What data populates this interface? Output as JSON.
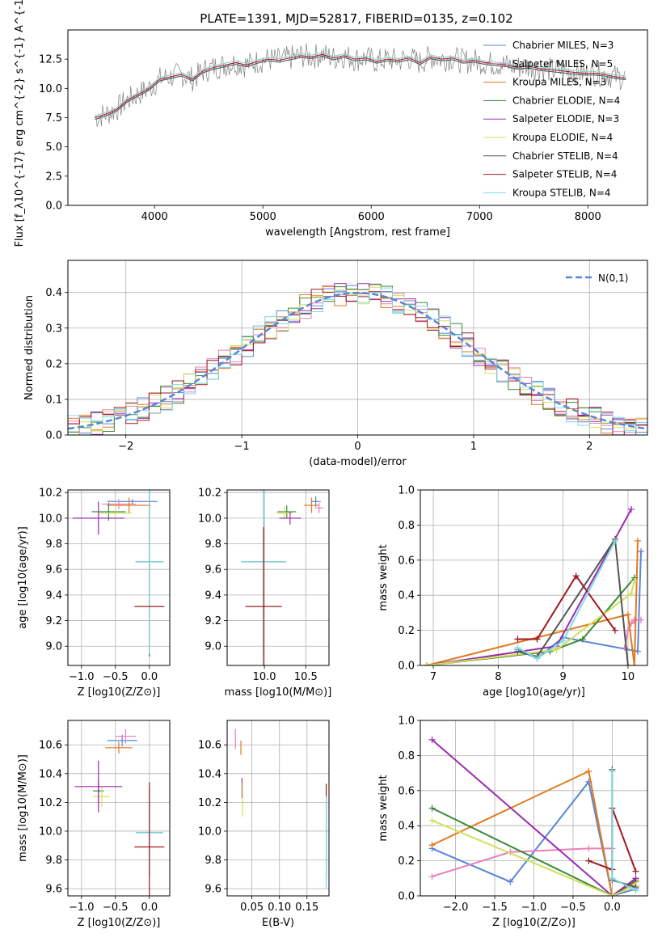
{
  "chart_data": [
    {
      "id": "spectrum",
      "type": "line",
      "title": "PLATE=1391, MJD=52817, FIBERID=0135, z=0.102",
      "xlabel": "wavelength [Angstrom, rest frame]",
      "ylabel": "Flux [f_λ10^{-17} erg cm^{-2} s^{-1} A^{-1}]",
      "xlim": [
        3200,
        8550
      ],
      "ylim": [
        0,
        15
      ],
      "xticks": [
        4000,
        5000,
        6000,
        7000,
        8000
      ],
      "yticks": [
        0.0,
        2.5,
        5.0,
        7.5,
        10.0,
        12.5
      ],
      "grid": false,
      "legend_position": "right",
      "data_series": {
        "name": "data",
        "color": "#808080",
        "x": [
          3450,
          3550,
          3650,
          3750,
          3850,
          3950,
          4050,
          4150,
          4250,
          4350,
          4450,
          4550,
          4650,
          4750,
          4850,
          4950,
          5050,
          5150,
          5250,
          5350,
          5450,
          5550,
          5650,
          5750,
          5850,
          5950,
          6050,
          6150,
          6250,
          6350,
          6450,
          6550,
          6650,
          6750,
          6850,
          6950,
          7050,
          7150,
          7250,
          7350,
          7450,
          7550,
          7650,
          7750,
          7850,
          7950,
          8050,
          8150,
          8250,
          8350
        ],
        "y": [
          7.5,
          7.8,
          8.2,
          9.0,
          9.5,
          10.0,
          10.8,
          11.0,
          11.2,
          10.8,
          11.5,
          11.8,
          12.0,
          12.2,
          12.0,
          12.3,
          12.5,
          12.4,
          12.6,
          12.8,
          12.7,
          12.9,
          12.6,
          12.8,
          12.5,
          12.6,
          12.3,
          12.5,
          12.4,
          12.6,
          12.2,
          12.7,
          12.5,
          12.6,
          12.3,
          12.4,
          12.2,
          12.1,
          12.0,
          11.8,
          11.9,
          11.7,
          11.6,
          11.5,
          11.4,
          11.3,
          11.3,
          11.2,
          11.0,
          10.9
        ]
      },
      "series": [
        {
          "name": "Chabrier MILES, N_SSP=3",
          "color": "#5a85d6"
        },
        {
          "name": "Salpeter MILES, N_SSP=5",
          "color": "#e87fbd"
        },
        {
          "name": "Kroupa MILES, N_SSP=3",
          "color": "#e07a1f"
        },
        {
          "name": "Chabrier ELODIE, N_SSP=4",
          "color": "#3a8a3a"
        },
        {
          "name": "Salpeter ELODIE, N_SSP=3",
          "color": "#9a2cb0"
        },
        {
          "name": "Kroupa ELODIE, N_SSP=4",
          "color": "#d2e05a"
        },
        {
          "name": "Chabrier STELIB, N_SSP=4",
          "color": "#555555"
        },
        {
          "name": "Salpeter STELIB, N_SSP=4",
          "color": "#a01820"
        },
        {
          "name": "Kroupa STELIB, N_SSP=4",
          "color": "#7fd8e0"
        }
      ]
    },
    {
      "id": "residuals",
      "type": "bar",
      "xlabel": "(data-model)/error",
      "ylabel": "Normed distribution",
      "xlim": [
        -2.5,
        2.5
      ],
      "ylim": [
        0,
        0.49
      ],
      "xticks": [
        -2,
        -1,
        0,
        1,
        2
      ],
      "yticks": [
        0.0,
        0.1,
        0.2,
        0.3,
        0.4
      ],
      "grid": true,
      "legend": "N(0,1)",
      "legend_position": "top-right",
      "gaussian_color": "#5a85d6"
    },
    {
      "id": "age_vs_Z",
      "type": "scatter",
      "xlabel": "Z [log10(Z/Z⊙)]",
      "ylabel": "age  [log10(age/yr)]",
      "xlim": [
        -1.2,
        0.3
      ],
      "ylim": [
        8.85,
        10.22
      ],
      "xticks": [
        -1.0,
        -0.5,
        0.0
      ],
      "yticks": [
        9.0,
        9.2,
        9.4,
        9.6,
        9.8,
        10.0,
        10.2
      ],
      "grid": true,
      "errorbars": [
        {
          "color": "#5a85d6",
          "x": -0.25,
          "y": 10.13,
          "xerr": 0.37,
          "yerr": 0.02
        },
        {
          "color": "#e87fbd",
          "x": -0.45,
          "y": 10.11,
          "xerr": 0.25,
          "yerr": 0.04
        },
        {
          "color": "#e07a1f",
          "x": -0.3,
          "y": 10.1,
          "xerr": 0.32,
          "yerr": 0.06
        },
        {
          "color": "#3a8a3a",
          "x": -0.6,
          "y": 10.05,
          "xerr": 0.25,
          "yerr": 0.07
        },
        {
          "color": "#d2e05a",
          "x": -0.5,
          "y": 10.04,
          "xerr": 0.25,
          "yerr": 0.06
        },
        {
          "color": "#9a2cb0",
          "x": -0.75,
          "y": 10.0,
          "xerr": 0.38,
          "yerr": 0.13
        },
        {
          "color": "#555555",
          "x": 0.0,
          "y": 9.66,
          "xerr": 0.2,
          "yerr": 0.74
        },
        {
          "color": "#7fd8e0",
          "x": 0.0,
          "y": 9.66,
          "xerr": 0.21,
          "yerr": 0.72
        },
        {
          "color": "#a01820",
          "x": 0.0,
          "y": 9.31,
          "xerr": 0.22,
          "yerr": 0.0
        }
      ]
    },
    {
      "id": "age_vs_mass",
      "type": "scatter",
      "xlabel": "mass [log10(M/M⊙)]",
      "ylabel": "",
      "xlim": [
        9.55,
        10.78
      ],
      "ylim": [
        8.85,
        10.22
      ],
      "xticks": [
        10.0,
        10.5
      ],
      "yticks": [
        9.0,
        9.2,
        9.4,
        9.6,
        9.8,
        10.0,
        10.2
      ],
      "grid": true,
      "errorbars": [
        {
          "color": "#5a85d6",
          "x": 10.62,
          "y": 10.13,
          "xerr": 0.06,
          "yerr": 0.04
        },
        {
          "color": "#e87fbd",
          "x": 10.66,
          "y": 10.08,
          "xerr": 0.05,
          "yerr": 0.04
        },
        {
          "color": "#e07a1f",
          "x": 10.57,
          "y": 10.1,
          "xerr": 0.09,
          "yerr": 0.06
        },
        {
          "color": "#3a8a3a",
          "x": 10.27,
          "y": 10.05,
          "xerr": 0.11,
          "yerr": 0.05
        },
        {
          "color": "#d2e05a",
          "x": 10.24,
          "y": 10.04,
          "xerr": 0.1,
          "yerr": 0.05
        },
        {
          "color": "#9a2cb0",
          "x": 10.31,
          "y": 10.0,
          "xerr": 0.13,
          "yerr": 0.05
        },
        {
          "color": "#555555",
          "x": 9.99,
          "y": 9.66,
          "xerr": 0.27,
          "yerr": 0.74
        },
        {
          "color": "#7fd8e0",
          "x": 9.99,
          "y": 9.66,
          "xerr": 0.27,
          "yerr": 0.72
        },
        {
          "color": "#a01820",
          "x": 9.99,
          "y": 9.31,
          "xerr": 0.22,
          "yerr": 0.62
        }
      ]
    },
    {
      "id": "weight_vs_age",
      "type": "line",
      "xlabel": "age  [log10(age/yr)]",
      "ylabel": "mass weight",
      "xlim": [
        6.8,
        10.3
      ],
      "ylim": [
        0,
        1.0
      ],
      "xticks": [
        7,
        8,
        9,
        10
      ],
      "yticks": [
        0.0,
        0.2,
        0.4,
        0.6,
        0.8,
        1.0
      ],
      "grid": true,
      "series": [
        {
          "color": "#5a85d6",
          "x": [
            8.3,
            8.6,
            9.0,
            10.15,
            10.2
          ],
          "y": [
            0.09,
            0.04,
            0.16,
            0.08,
            0.65
          ]
        },
        {
          "color": "#e87fbd",
          "x": [
            9.95,
            10.0,
            10.05,
            10.1,
            10.2
          ],
          "y": [
            0.1,
            0.2,
            0.24,
            0.26,
            0.26
          ]
        },
        {
          "color": "#e07a1f",
          "x": [
            6.9,
            10.0,
            10.1,
            10.15
          ],
          "y": [
            0.0,
            0.29,
            0.0,
            0.71
          ]
        },
        {
          "color": "#3a8a3a",
          "x": [
            6.9,
            8.8,
            9.3,
            10.1
          ],
          "y": [
            0.0,
            0.08,
            0.15,
            0.5
          ]
        },
        {
          "color": "#9a2cb0",
          "x": [
            6.9,
            8.9,
            10.05
          ],
          "y": [
            0.0,
            0.11,
            0.89
          ]
        },
        {
          "color": "#d2e05a",
          "x": [
            6.9,
            8.9,
            10.05,
            10.1
          ],
          "y": [
            0.0,
            0.09,
            0.41,
            0.48
          ]
        },
        {
          "color": "#555555",
          "x": [
            8.3,
            8.6,
            9.8,
            10.0
          ],
          "y": [
            0.08,
            0.05,
            0.72,
            0.0
          ]
        },
        {
          "color": "#a01820",
          "x": [
            8.3,
            8.6,
            9.2,
            9.8
          ],
          "y": [
            0.15,
            0.15,
            0.51,
            0.2
          ]
        },
        {
          "color": "#7fd8e0",
          "x": [
            8.3,
            8.6,
            9.0,
            9.8
          ],
          "y": [
            0.1,
            0.04,
            0.14,
            0.71
          ]
        }
      ]
    },
    {
      "id": "mass_vs_Z",
      "type": "scatter",
      "xlabel": "Z [log10(Z/Z⊙)]",
      "ylabel": "mass [log10(M/M⊙)]",
      "xlim": [
        -1.2,
        0.3
      ],
      "ylim": [
        9.55,
        10.77
      ],
      "xticks": [
        -1.0,
        -0.5,
        0.0
      ],
      "yticks": [
        9.6,
        9.8,
        10.0,
        10.2,
        10.4,
        10.6
      ],
      "grid": true,
      "errorbars": [
        {
          "color": "#5a85d6",
          "x": -0.4,
          "y": 10.63,
          "xerr": 0.22,
          "yerr": 0.04
        },
        {
          "color": "#e87fbd",
          "x": -0.35,
          "y": 10.66,
          "xerr": 0.15,
          "yerr": 0.05
        },
        {
          "color": "#e07a1f",
          "x": -0.45,
          "y": 10.58,
          "xerr": 0.2,
          "yerr": 0.04
        },
        {
          "color": "#3a8a3a",
          "x": -0.75,
          "y": 10.28,
          "xerr": 0.08,
          "yerr": 0.09
        },
        {
          "color": "#d2e05a",
          "x": -0.7,
          "y": 10.24,
          "xerr": 0.12,
          "yerr": 0.07
        },
        {
          "color": "#9a2cb0",
          "x": -0.75,
          "y": 10.31,
          "xerr": 0.35,
          "yerr": 0.18
        },
        {
          "color": "#555555",
          "x": 0.0,
          "y": 9.99,
          "xerr": 0.2,
          "yerr": 0.3
        },
        {
          "color": "#7fd8e0",
          "x": 0.0,
          "y": 9.99,
          "xerr": 0.2,
          "yerr": 0.28
        },
        {
          "color": "#a01820",
          "x": 0.0,
          "y": 9.89,
          "xerr": 0.22,
          "yerr": 0.45
        }
      ]
    },
    {
      "id": "mass_vs_ebv",
      "type": "scatter",
      "xlabel": "E(B-V)",
      "ylabel": "",
      "xlim": [
        0.005,
        0.19
      ],
      "ylim": [
        9.55,
        10.77
      ],
      "xticks": [
        0.05,
        0.1,
        0.15
      ],
      "yticks": [
        9.6,
        9.8,
        10.0,
        10.2,
        10.4,
        10.6
      ],
      "grid": true,
      "errorbars": [
        {
          "color": "#e87fbd",
          "x": 0.02,
          "y": 10.64,
          "xerr": 0.0,
          "yerr": 0.07
        },
        {
          "color": "#e07a1f",
          "x": 0.03,
          "y": 10.58,
          "xerr": 0.0,
          "yerr": 0.05
        },
        {
          "color": "#9a2cb0",
          "x": 0.032,
          "y": 10.3,
          "xerr": 0.0,
          "yerr": 0.07
        },
        {
          "color": "#d2e05a",
          "x": 0.033,
          "y": 10.22,
          "xerr": 0.0,
          "yerr": 0.12
        },
        {
          "color": "#a01820",
          "x": 0.185,
          "y": 10.0,
          "xerr": 0.0,
          "yerr": 0.33
        },
        {
          "color": "#7fd8e0",
          "x": 0.185,
          "y": 9.92,
          "xerr": 0.0,
          "yerr": 0.32
        }
      ]
    },
    {
      "id": "weight_vs_Z",
      "type": "line",
      "xlabel": "Z [log10(Z/Z⊙)]",
      "ylabel": "mass weight",
      "xlim": [
        -2.45,
        0.45
      ],
      "ylim": [
        0,
        1.0
      ],
      "xticks": [
        -2.0,
        -1.5,
        -1.0,
        -0.5,
        0.0
      ],
      "yticks": [
        0.0,
        0.2,
        0.4,
        0.6,
        0.8,
        1.0
      ],
      "grid": true,
      "series": [
        {
          "color": "#5a85d6",
          "x": [
            -2.3,
            -1.3,
            -0.3,
            0.0,
            0.3
          ],
          "y": [
            0.27,
            0.08,
            0.65,
            0.0,
            0.04
          ]
        },
        {
          "color": "#e87fbd",
          "x": [
            -2.3,
            -1.3,
            -0.3,
            0.0
          ],
          "y": [
            0.11,
            0.25,
            0.27,
            0.27
          ]
        },
        {
          "color": "#e07a1f",
          "x": [
            -2.3,
            -0.3,
            0.0,
            0.3
          ],
          "y": [
            0.29,
            0.71,
            0.0,
            0.08
          ]
        },
        {
          "color": "#3a8a3a",
          "x": [
            -2.3,
            0.0,
            0.3
          ],
          "y": [
            0.5,
            0.0,
            0.09
          ]
        },
        {
          "color": "#9a2cb0",
          "x": [
            -2.3,
            0.0,
            0.3
          ],
          "y": [
            0.89,
            0.0,
            0.1
          ]
        },
        {
          "color": "#d2e05a",
          "x": [
            -2.3,
            0.0,
            0.3
          ],
          "y": [
            0.43,
            0.0,
            0.06
          ]
        },
        {
          "color": "#555555",
          "x": [
            0.0,
            0.0,
            0.3
          ],
          "y": [
            0.72,
            0.09,
            0.05
          ]
        },
        {
          "color": "#a01820",
          "x": [
            -0.3,
            0.0,
            0.0,
            0.3
          ],
          "y": [
            0.2,
            0.15,
            0.5,
            0.14
          ]
        },
        {
          "color": "#7fd8e0",
          "x": [
            0.0,
            0.0,
            0.3
          ],
          "y": [
            0.71,
            0.1,
            0.03
          ]
        }
      ]
    }
  ]
}
